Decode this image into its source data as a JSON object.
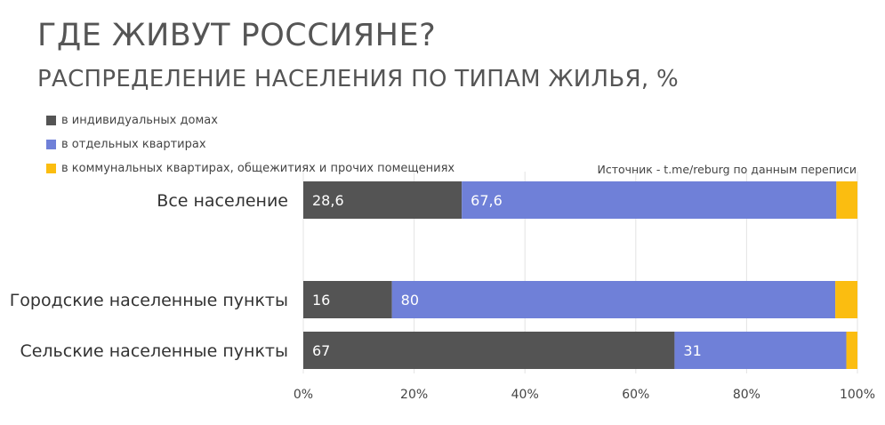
{
  "title": "ГДЕ ЖИВУТ РОССИЯНЕ?",
  "subtitle": "РАСПРЕДЕЛЕНИЕ НАСЕЛЕНИЯ ПО ТИПАМ ЖИЛЬЯ, %",
  "source": "Источник - t.me/reburg по данным переписи",
  "chart_data": {
    "type": "bar",
    "orientation": "horizontal",
    "stacked": true,
    "categories": [
      "Все население",
      "Городские населенные пункты",
      "Сельские населенные пункты"
    ],
    "series": [
      {
        "name": "в индивидуальных домах",
        "color": "#545454",
        "values": [
          28.6,
          16,
          67
        ],
        "labels": [
          "28,6",
          "16",
          "67"
        ]
      },
      {
        "name": "в отдельных квартирах",
        "color": "#6f80d8",
        "values": [
          67.6,
          80,
          31
        ],
        "labels": [
          "67,6",
          "80",
          "31"
        ]
      },
      {
        "name": "в коммунальных квартирах, общежитиях и прочих помещениях",
        "color": "#fbbd10",
        "values": [
          3.8,
          4,
          2
        ],
        "labels": [
          "",
          "",
          ""
        ]
      }
    ],
    "xlim": [
      0,
      100
    ],
    "x_ticks": [
      "0%",
      "20%",
      "40%",
      "60%",
      "80%",
      "100%"
    ],
    "grid": true,
    "legend_position": "top-left"
  }
}
